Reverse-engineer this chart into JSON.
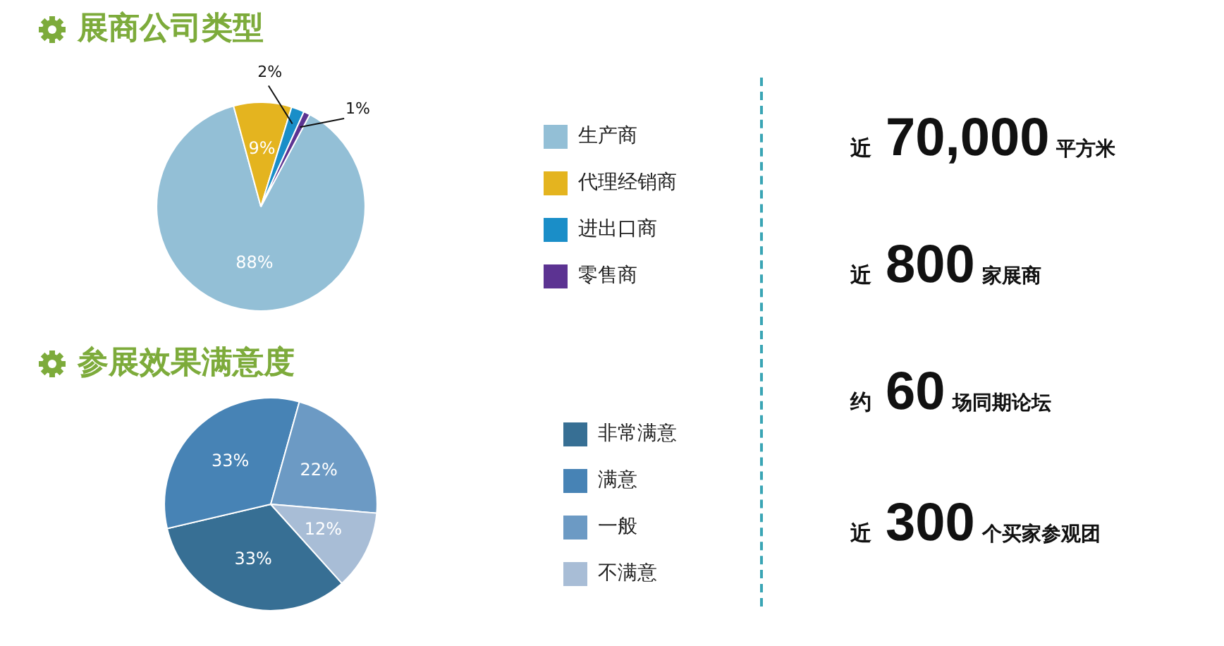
{
  "chart_data": [
    {
      "type": "pie",
      "title": "展商公司类型",
      "categories": [
        "生产商",
        "代理经销商",
        "进出口商",
        "零售商"
      ],
      "values": [
        88,
        9,
        2,
        1
      ],
      "colors": [
        "#93bfd6",
        "#e4b41f",
        "#1a8ec8",
        "#5c3392"
      ],
      "value_labels": [
        "88%",
        "9%",
        "2%",
        "1%"
      ],
      "legend": "right"
    },
    {
      "type": "pie",
      "title": "参展效果满意度",
      "categories": [
        "非常满意",
        "满意",
        "一般",
        "不满意"
      ],
      "values": [
        33,
        33,
        22,
        12
      ],
      "colors": [
        "#376f94",
        "#4783b5",
        "#6c9ac4",
        "#a8bdd6"
      ],
      "value_labels": [
        "33%",
        "33%",
        "22%",
        "12%"
      ],
      "legend": "right"
    },
    {
      "type": "other",
      "annotations": [
        "近",
        "70,000",
        "平方米",
        "近",
        "800",
        "家展商",
        "约",
        "60",
        "场同期论坛",
        "近",
        "300",
        "个买家参观团"
      ]
    }
  ]
}
